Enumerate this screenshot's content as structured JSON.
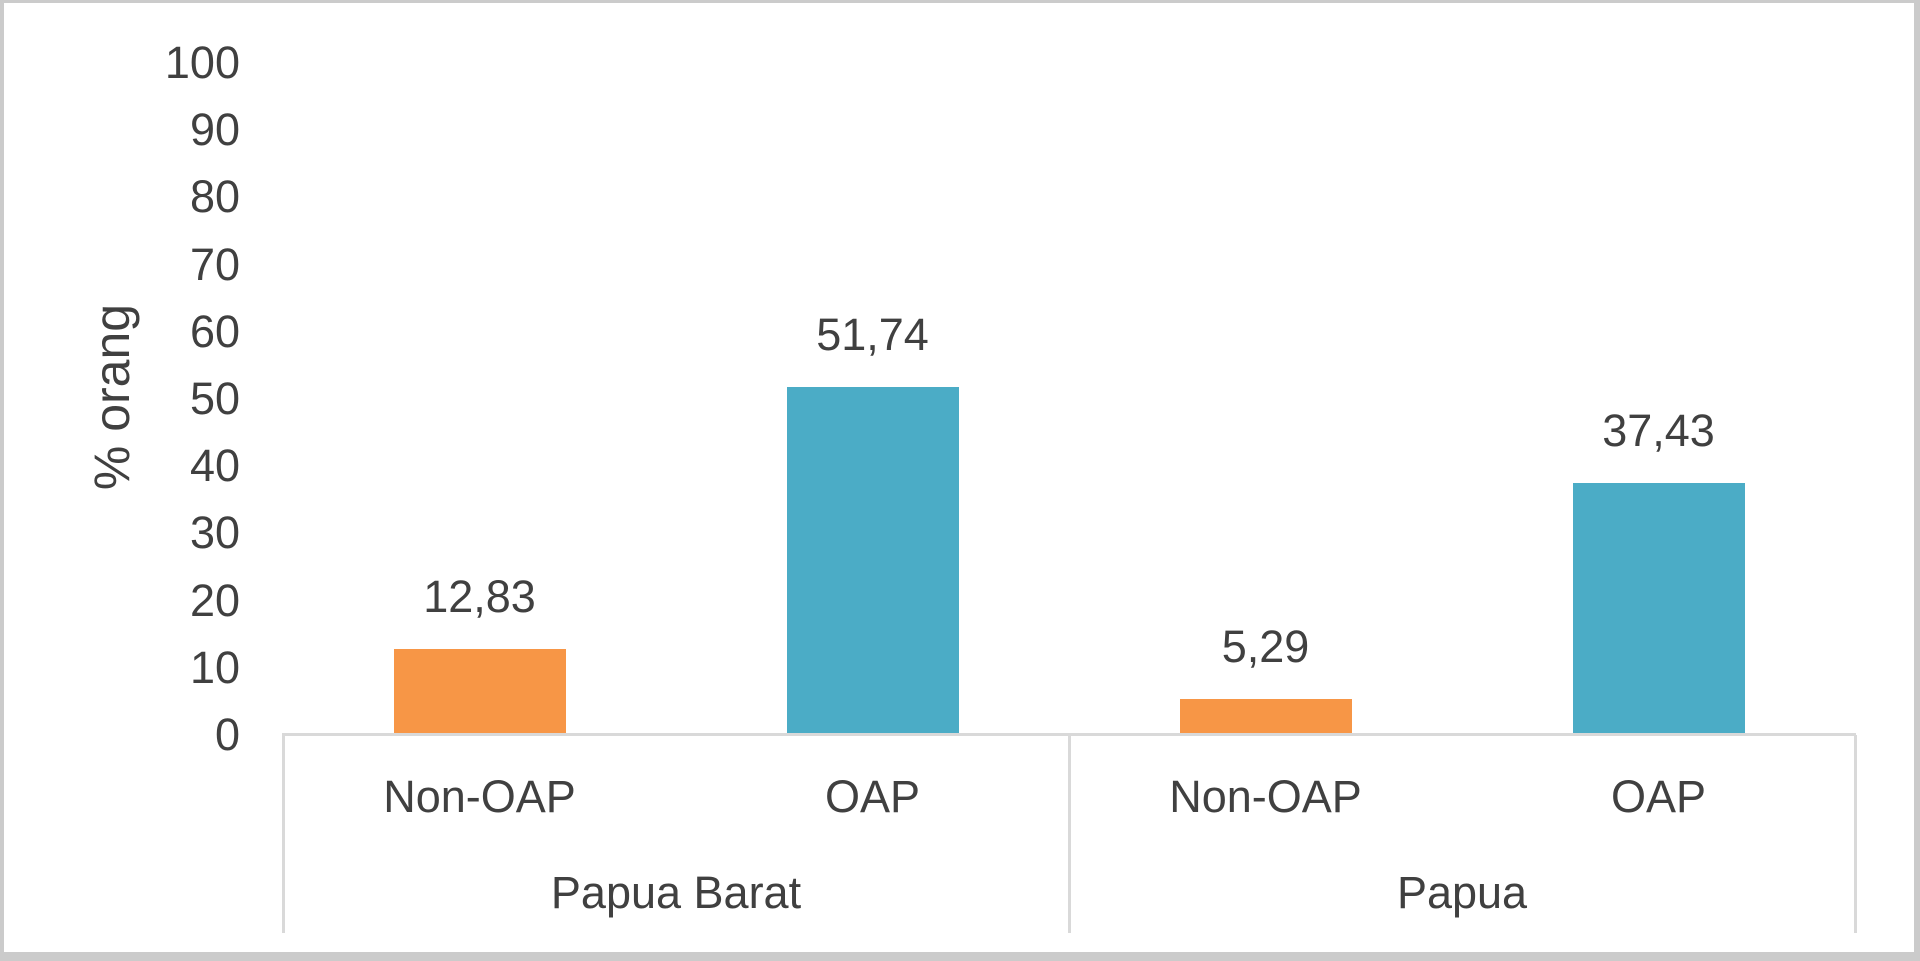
{
  "chart_data": {
    "type": "bar",
    "title": "",
    "xlabel": "",
    "ylabel": "% orang",
    "ylim": [
      0,
      100
    ],
    "yticks": [
      0,
      10,
      20,
      30,
      40,
      50,
      60,
      70,
      80,
      90,
      100
    ],
    "grid": false,
    "legend": false,
    "series": [
      {
        "name": "Non-OAP",
        "color": "#F79646"
      },
      {
        "name": "OAP",
        "color": "#4BACC6"
      }
    ],
    "groups": [
      {
        "label": "Papua Barat",
        "bars": [
          {
            "category": "Non-OAP",
            "value": 12.83,
            "value_label": "12,83",
            "color": "#F79646"
          },
          {
            "category": "OAP",
            "value": 51.74,
            "value_label": "51,74",
            "color": "#4BACC6"
          }
        ]
      },
      {
        "label": "Papua",
        "bars": [
          {
            "category": "Non-OAP",
            "value": 5.29,
            "value_label": "5,29",
            "color": "#F79646"
          },
          {
            "category": "OAP",
            "value": 37.43,
            "value_label": "37,43",
            "color": "#4BACC6"
          }
        ]
      }
    ],
    "colors": {
      "text": "#404040",
      "axis_line": "#D9D9D9",
      "background": "#FFFFFF",
      "frame_border": "#CBCBCB"
    }
  }
}
